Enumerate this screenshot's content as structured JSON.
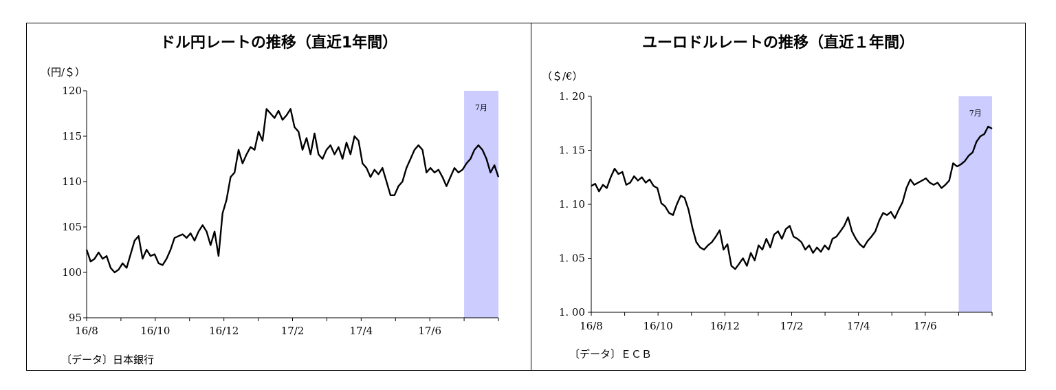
{
  "chart_data": [
    {
      "type": "line",
      "title": "ドル円レートの推移（直近1年間）",
      "unit_label": "（円/＄）",
      "source": "〔データ〕日本銀行",
      "ylim": [
        95,
        120
      ],
      "y_ticks": [
        "120",
        "115",
        "110",
        "105",
        "100",
        "95"
      ],
      "x_tick_labels": [
        "16/8",
        "16/10",
        "16/12",
        "17/2",
        "17/4",
        "17/6"
      ],
      "xlim_months": [
        0,
        12
      ],
      "highlight": {
        "label": "7月",
        "from": 11,
        "to": 12,
        "color": "#ccccff"
      },
      "series": [
        {
          "values": [
            102.5,
            101.2,
            101.5,
            102.2,
            101.5,
            101.8,
            100.5,
            100.0,
            100.3,
            101.0,
            100.5,
            102.0,
            103.5,
            104.0,
            101.5,
            102.5,
            101.8,
            102.0,
            101.0,
            100.8,
            101.5,
            102.5,
            103.8,
            104.0,
            104.2,
            103.8,
            104.3,
            103.5,
            104.5,
            105.2,
            104.5,
            103.0,
            104.5,
            101.8,
            106.5,
            108.0,
            110.5,
            111.0,
            113.5,
            112.0,
            113.0,
            113.8,
            113.5,
            115.5,
            114.5,
            118.0,
            117.5,
            117.0,
            117.8,
            116.8,
            117.3,
            118.0,
            116.0,
            115.5,
            113.5,
            114.8,
            113.0,
            115.3,
            113.0,
            112.5,
            113.5,
            114.0,
            113.0,
            113.8,
            112.5,
            114.3,
            113.0,
            115.0,
            114.5,
            112.0,
            111.5,
            110.5,
            111.3,
            110.8,
            111.5,
            110.0,
            108.5,
            108.5,
            109.5,
            110.0,
            111.5,
            112.5,
            113.5,
            114.0,
            113.5,
            111.0,
            111.5,
            111.0,
            111.3,
            110.5,
            109.5,
            110.5,
            111.5,
            111.0,
            111.3,
            112.0,
            112.5,
            113.5,
            114.0,
            113.5,
            112.5,
            111.0,
            111.8,
            110.5
          ]
        }
      ]
    },
    {
      "type": "line",
      "title": "ユーロドルレートの推移（直近１年間）",
      "unit_label": "（＄/€）",
      "source": "〔データ〕ＥＣＢ",
      "ylim": [
        1.0,
        1.2
      ],
      "y_ticks": [
        "1. 20",
        "1. 15",
        "1. 10",
        "1. 05",
        "1. 00"
      ],
      "x_tick_labels": [
        "16/8",
        "16/10",
        "16/12",
        "17/2",
        "17/4",
        "17/6"
      ],
      "xlim_months": [
        0,
        12
      ],
      "highlight": {
        "label": "7月",
        "from": 11,
        "to": 12,
        "color": "#ccccff"
      },
      "series": [
        {
          "values": [
            1.117,
            1.119,
            1.112,
            1.118,
            1.115,
            1.125,
            1.133,
            1.128,
            1.13,
            1.118,
            1.12,
            1.126,
            1.122,
            1.125,
            1.12,
            1.123,
            1.117,
            1.115,
            1.101,
            1.098,
            1.092,
            1.09,
            1.1,
            1.108,
            1.106,
            1.095,
            1.078,
            1.065,
            1.06,
            1.058,
            1.062,
            1.065,
            1.07,
            1.076,
            1.058,
            1.063,
            1.043,
            1.04,
            1.045,
            1.05,
            1.043,
            1.055,
            1.048,
            1.062,
            1.058,
            1.068,
            1.06,
            1.072,
            1.075,
            1.068,
            1.077,
            1.08,
            1.07,
            1.068,
            1.065,
            1.058,
            1.062,
            1.055,
            1.06,
            1.056,
            1.062,
            1.058,
            1.068,
            1.07,
            1.075,
            1.08,
            1.088,
            1.075,
            1.068,
            1.063,
            1.06,
            1.066,
            1.07,
            1.075,
            1.085,
            1.092,
            1.09,
            1.093,
            1.087,
            1.095,
            1.102,
            1.115,
            1.123,
            1.118,
            1.12,
            1.122,
            1.124,
            1.12,
            1.118,
            1.12,
            1.115,
            1.118,
            1.122,
            1.138,
            1.135,
            1.137,
            1.14,
            1.145,
            1.148,
            1.158,
            1.163,
            1.165,
            1.172,
            1.17
          ]
        }
      ]
    }
  ]
}
